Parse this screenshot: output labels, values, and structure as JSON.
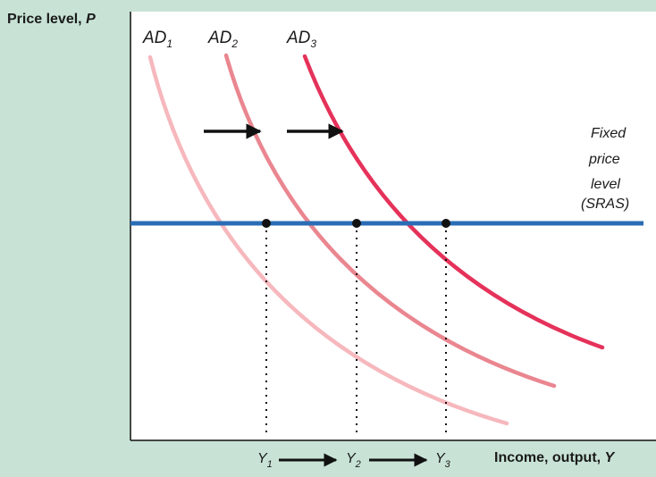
{
  "diagram": {
    "y_axis_label": "Price level, ",
    "y_axis_symbol": "P",
    "x_axis_label": "Income, output, ",
    "x_axis_symbol": "Y",
    "curves": [
      {
        "id": "ad1",
        "base": "AD",
        "sub": "1",
        "color": "#f6b8bd"
      },
      {
        "id": "ad2",
        "base": "AD",
        "sub": "2",
        "color": "#ea8690"
      },
      {
        "id": "ad3",
        "base": "AD",
        "sub": "3",
        "color": "#e5325a"
      }
    ],
    "sras": {
      "label_lines": [
        "Fixed",
        "price",
        "level",
        "(SRAS)"
      ],
      "color": "#2a6db5"
    },
    "output_levels": [
      {
        "base": "Y",
        "sub": "1"
      },
      {
        "base": "Y",
        "sub": "2"
      },
      {
        "base": "Y",
        "sub": "3"
      }
    ],
    "background": "#c8e3d6",
    "plot_background": "#ffffff"
  }
}
